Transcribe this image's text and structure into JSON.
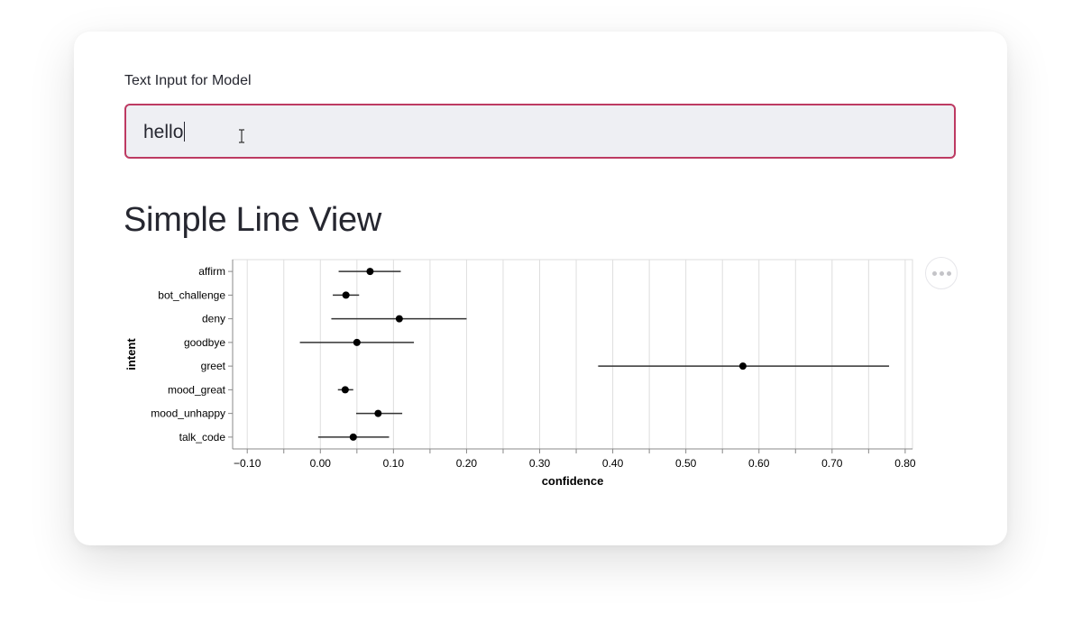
{
  "input": {
    "label": "Text Input for Model",
    "value": "hello"
  },
  "chart_title": "Simple Line View",
  "menu": {
    "icon": "more-horizontal-icon"
  },
  "colors": {
    "input_border": "#bd3a62",
    "input_background": "#eeeff3",
    "text": "#262730"
  },
  "chart_data": {
    "type": "scatter",
    "subtype": "point-with-error-bars",
    "xlabel": "confidence",
    "ylabel": "intent",
    "xlim": [
      -0.12,
      0.81
    ],
    "x_ticks": [
      "−0.10",
      "0.00",
      "0.10",
      "0.20",
      "0.30",
      "0.40",
      "0.50",
      "0.60",
      "0.70",
      "0.80"
    ],
    "x_tick_values": [
      -0.1,
      0.0,
      0.1,
      0.2,
      0.3,
      0.4,
      0.5,
      0.6,
      0.7,
      0.8
    ],
    "grid": true,
    "categories": [
      "affirm",
      "bot_challenge",
      "deny",
      "goodbye",
      "greet",
      "mood_great",
      "mood_unhappy",
      "talk_code"
    ],
    "points": [
      {
        "label": "affirm",
        "mean": 0.068,
        "low": 0.025,
        "high": 0.11
      },
      {
        "label": "bot_challenge",
        "mean": 0.035,
        "low": 0.017,
        "high": 0.053
      },
      {
        "label": "deny",
        "mean": 0.108,
        "low": 0.015,
        "high": 0.2
      },
      {
        "label": "goodbye",
        "mean": 0.05,
        "low": -0.028,
        "high": 0.128
      },
      {
        "label": "greet",
        "mean": 0.578,
        "low": 0.38,
        "high": 0.778
      },
      {
        "label": "mood_great",
        "mean": 0.034,
        "low": 0.024,
        "high": 0.045
      },
      {
        "label": "mood_unhappy",
        "mean": 0.079,
        "low": 0.049,
        "high": 0.112
      },
      {
        "label": "talk_code",
        "mean": 0.045,
        "low": -0.003,
        "high": 0.094
      }
    ]
  }
}
